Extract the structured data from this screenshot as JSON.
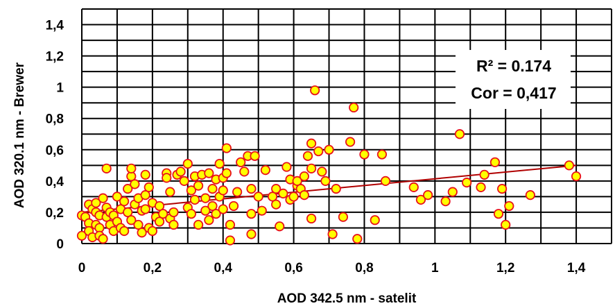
{
  "chart_data": {
    "type": "scatter",
    "xlabel": "AOD 342.5 nm - satelit",
    "ylabel": "AOD 320.1 nm - Brewer",
    "xlim": [
      0,
      1.5
    ],
    "ylim": [
      0,
      1.5
    ],
    "x_ticks": [
      "0",
      "0,2",
      "0,4",
      "0,6",
      "0,8",
      "1",
      "1,2",
      "1,4"
    ],
    "y_ticks": [
      "0",
      "0,2",
      "0,4",
      "0,6",
      "0,8",
      "1",
      "1,2",
      "1,4"
    ],
    "grid": true,
    "annotations": [
      "R² = 0.174",
      "Cor = 0,417"
    ],
    "trendline": {
      "x": [
        0,
        1.4
      ],
      "y": [
        0.2,
        0.5
      ]
    },
    "colors": {
      "marker_fill": "#ffff00",
      "marker_edge": "#e8111c",
      "trendline": "#b00000"
    },
    "points": [
      [
        0.0,
        0.05
      ],
      [
        0.0,
        0.18
      ],
      [
        0.01,
        0.17
      ],
      [
        0.02,
        0.25
      ],
      [
        0.02,
        0.13
      ],
      [
        0.02,
        0.08
      ],
      [
        0.03,
        0.04
      ],
      [
        0.03,
        0.22
      ],
      [
        0.04,
        0.26
      ],
      [
        0.04,
        0.2
      ],
      [
        0.04,
        0.12
      ],
      [
        0.05,
        0.18
      ],
      [
        0.05,
        0.1
      ],
      [
        0.05,
        0.05
      ],
      [
        0.06,
        0.03
      ],
      [
        0.06,
        0.29
      ],
      [
        0.07,
        0.23
      ],
      [
        0.07,
        0.48
      ],
      [
        0.07,
        0.17
      ],
      [
        0.08,
        0.2
      ],
      [
        0.08,
        0.12
      ],
      [
        0.09,
        0.08
      ],
      [
        0.09,
        0.18
      ],
      [
        0.1,
        0.14
      ],
      [
        0.1,
        0.3
      ],
      [
        0.11,
        0.22
      ],
      [
        0.11,
        0.1
      ],
      [
        0.12,
        0.08
      ],
      [
        0.12,
        0.27
      ],
      [
        0.13,
        0.2
      ],
      [
        0.13,
        0.35
      ],
      [
        0.14,
        0.15
      ],
      [
        0.14,
        0.43
      ],
      [
        0.14,
        0.48
      ],
      [
        0.15,
        0.25
      ],
      [
        0.15,
        0.38
      ],
      [
        0.16,
        0.29
      ],
      [
        0.16,
        0.12
      ],
      [
        0.17,
        0.21
      ],
      [
        0.17,
        0.07
      ],
      [
        0.18,
        0.22
      ],
      [
        0.18,
        0.31
      ],
      [
        0.18,
        0.44
      ],
      [
        0.19,
        0.36
      ],
      [
        0.19,
        0.1
      ],
      [
        0.2,
        0.26
      ],
      [
        0.2,
        0.08
      ],
      [
        0.21,
        0.17
      ],
      [
        0.22,
        0.24
      ],
      [
        0.22,
        0.14
      ],
      [
        0.23,
        0.19
      ],
      [
        0.24,
        0.45
      ],
      [
        0.24,
        0.42
      ],
      [
        0.25,
        0.16
      ],
      [
        0.25,
        0.33
      ],
      [
        0.26,
        0.2
      ],
      [
        0.26,
        0.12
      ],
      [
        0.27,
        0.44
      ],
      [
        0.28,
        0.46
      ],
      [
        0.29,
        0.4
      ],
      [
        0.3,
        0.23
      ],
      [
        0.3,
        0.51
      ],
      [
        0.31,
        0.34
      ],
      [
        0.31,
        0.19
      ],
      [
        0.32,
        0.28
      ],
      [
        0.32,
        0.43
      ],
      [
        0.33,
        0.12
      ],
      [
        0.33,
        0.37
      ],
      [
        0.34,
        0.44
      ],
      [
        0.35,
        0.21
      ],
      [
        0.35,
        0.29
      ],
      [
        0.36,
        0.15
      ],
      [
        0.36,
        0.45
      ],
      [
        0.37,
        0.24
      ],
      [
        0.37,
        0.35
      ],
      [
        0.38,
        0.41
      ],
      [
        0.38,
        0.19
      ],
      [
        0.39,
        0.3
      ],
      [
        0.39,
        0.51
      ],
      [
        0.4,
        0.22
      ],
      [
        0.4,
        0.34
      ],
      [
        0.4,
        0.42
      ],
      [
        0.41,
        0.61
      ],
      [
        0.41,
        0.45
      ],
      [
        0.42,
        0.02
      ],
      [
        0.42,
        0.12
      ],
      [
        0.43,
        0.24
      ],
      [
        0.44,
        0.33
      ],
      [
        0.45,
        0.52
      ],
      [
        0.46,
        0.46
      ],
      [
        0.47,
        0.56
      ],
      [
        0.48,
        0.06
      ],
      [
        0.48,
        0.35
      ],
      [
        0.48,
        0.19
      ],
      [
        0.49,
        0.56
      ],
      [
        0.5,
        0.3
      ],
      [
        0.51,
        0.21
      ],
      [
        0.52,
        0.47
      ],
      [
        0.54,
        0.3
      ],
      [
        0.55,
        0.25
      ],
      [
        0.55,
        0.35
      ],
      [
        0.56,
        0.11
      ],
      [
        0.57,
        0.32
      ],
      [
        0.58,
        0.49
      ],
      [
        0.59,
        0.28
      ],
      [
        0.59,
        0.41
      ],
      [
        0.6,
        0.3
      ],
      [
        0.61,
        0.37
      ],
      [
        0.61,
        0.4
      ],
      [
        0.62,
        0.35
      ],
      [
        0.63,
        0.31
      ],
      [
        0.63,
        0.43
      ],
      [
        0.64,
        0.56
      ],
      [
        0.65,
        0.64
      ],
      [
        0.65,
        0.48
      ],
      [
        0.65,
        0.16
      ],
      [
        0.66,
        0.98
      ],
      [
        0.67,
        0.59
      ],
      [
        0.68,
        0.46
      ],
      [
        0.69,
        0.4
      ],
      [
        0.7,
        0.6
      ],
      [
        0.71,
        0.06
      ],
      [
        0.72,
        0.35
      ],
      [
        0.74,
        0.17
      ],
      [
        0.76,
        0.65
      ],
      [
        0.77,
        0.87
      ],
      [
        0.78,
        0.03
      ],
      [
        0.8,
        0.57
      ],
      [
        0.83,
        0.15
      ],
      [
        0.85,
        0.57
      ],
      [
        0.86,
        0.4
      ],
      [
        0.94,
        0.36
      ],
      [
        0.96,
        0.28
      ],
      [
        0.98,
        0.31
      ],
      [
        1.03,
        0.27
      ],
      [
        1.05,
        0.33
      ],
      [
        1.07,
        0.7
      ],
      [
        1.09,
        0.39
      ],
      [
        1.13,
        0.36
      ],
      [
        1.14,
        0.44
      ],
      [
        1.17,
        0.52
      ],
      [
        1.18,
        0.19
      ],
      [
        1.19,
        0.35
      ],
      [
        1.2,
        0.12
      ],
      [
        1.21,
        0.24
      ],
      [
        1.27,
        0.31
      ],
      [
        1.38,
        0.5
      ],
      [
        1.4,
        0.43
      ]
    ]
  }
}
